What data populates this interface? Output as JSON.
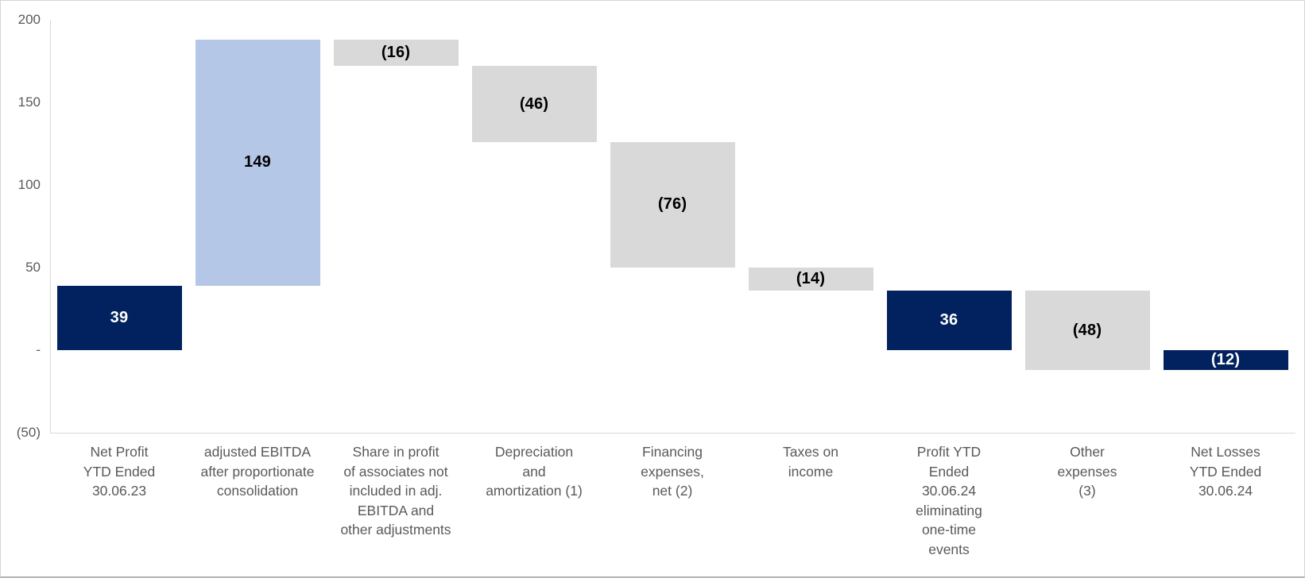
{
  "chart_data": {
    "type": "bar",
    "subtype": "waterfall",
    "title": "",
    "xlabel": "",
    "ylabel": "",
    "ylim": [
      -50,
      200
    ],
    "grid": false,
    "legend": false,
    "y_ticks": [
      {
        "value": 200,
        "label": "200"
      },
      {
        "value": 150,
        "label": "150"
      },
      {
        "value": 100,
        "label": "100"
      },
      {
        "value": 50,
        "label": "50"
      },
      {
        "value": 0,
        "label": "-"
      },
      {
        "value": -50,
        "label": "(50)"
      }
    ],
    "bars": [
      {
        "category": "Net Profit\nYTD Ended\n30.06.23",
        "value": 39,
        "label": "39",
        "start": 0,
        "end": 39,
        "color": "navy"
      },
      {
        "category": "adjusted EBITDA\nafter proportionate\nconsolidation",
        "value": 149,
        "label": "149",
        "start": 39,
        "end": 188,
        "color": "lightblue"
      },
      {
        "category": "Share in profit\nof associates not\nincluded in adj.\nEBITDA and\nother adjustments",
        "value": -16,
        "label": "(16)",
        "start": 188,
        "end": 172,
        "color": "gray"
      },
      {
        "category": "Depreciation\nand\namortization (1)",
        "value": -46,
        "label": "(46)",
        "start": 172,
        "end": 126,
        "color": "gray"
      },
      {
        "category": "Financing\nexpenses,\nnet (2)",
        "value": -76,
        "label": "(76)",
        "start": 126,
        "end": 50,
        "color": "gray"
      },
      {
        "category": "Taxes on\nincome",
        "value": -14,
        "label": "(14)",
        "start": 50,
        "end": 36,
        "color": "gray"
      },
      {
        "category": "Profit YTD\nEnded\n30.06.24\neliminating\none-time\nevents",
        "value": 36,
        "label": "36",
        "start": 0,
        "end": 36,
        "color": "navy"
      },
      {
        "category": "Other\nexpenses\n(3)",
        "value": -48,
        "label": "(48)",
        "start": 36,
        "end": -12,
        "color": "gray"
      },
      {
        "category": "Net Losses\nYTD Ended\n30.06.24",
        "value": -12,
        "label": "(12)",
        "start": -12,
        "end": 0,
        "color": "navy"
      }
    ],
    "colors": {
      "navy": "#01225E",
      "lightblue": "#B4C7E7",
      "gray": "#D9D9D9"
    },
    "label_text_colors": {
      "navy": "#FFFFFF",
      "lightblue": "#000000",
      "gray": "#000000"
    }
  }
}
